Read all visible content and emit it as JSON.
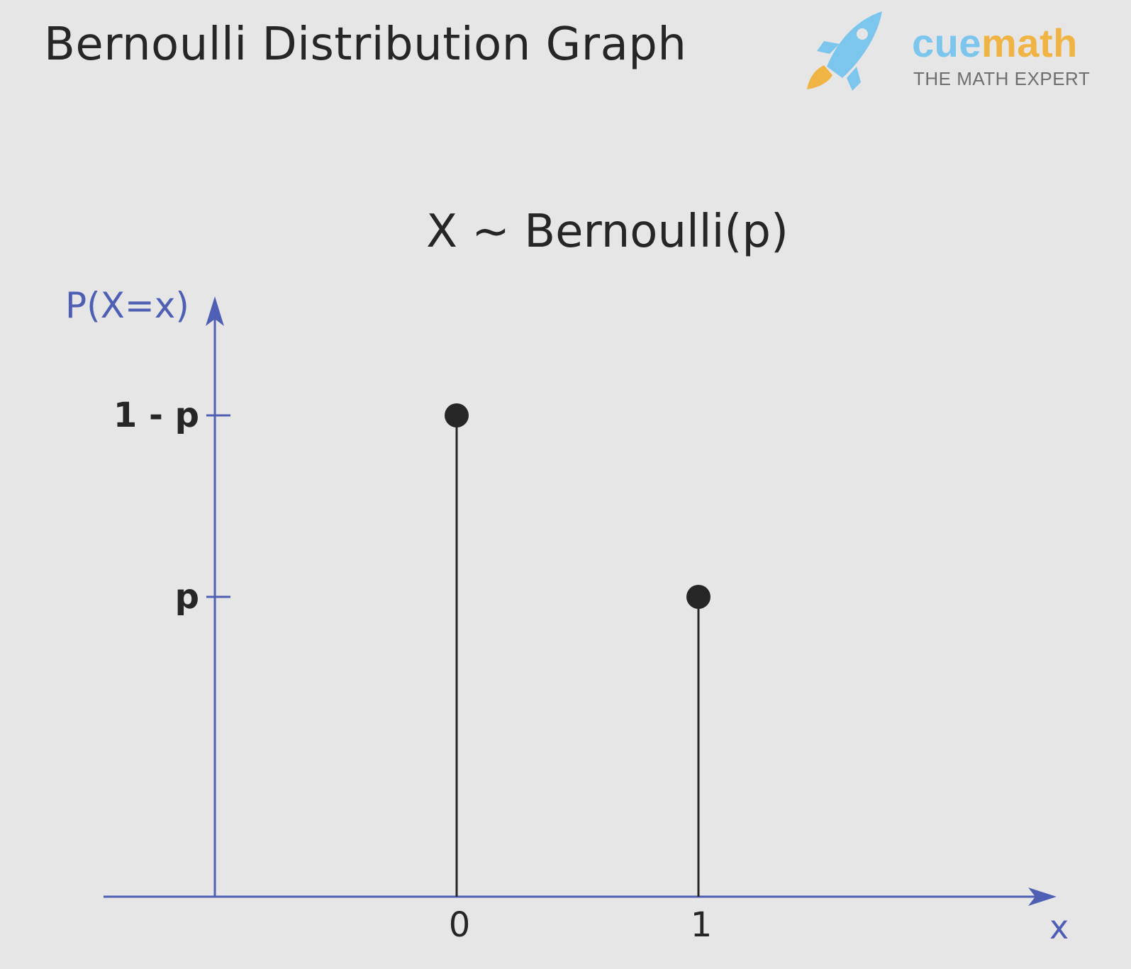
{
  "header": {
    "title": "Bernoulli Distribution Graph"
  },
  "logo": {
    "word_part1": "cue",
    "word_part2": "math",
    "tagline": "THE MATH EXPERT",
    "colors": {
      "cue": "#7cc6ee",
      "math": "#f0b444",
      "rocket_body": "#7cc6ee",
      "rocket_flame": "#f0b444"
    },
    "icon": "rocket-icon"
  },
  "chart_data": {
    "type": "stem",
    "title": "X ~ Bernoulli(p)",
    "xlabel": "x",
    "ylabel": "P(X=x)",
    "x_ticks": [
      "0",
      "1"
    ],
    "y_ticks": [
      "1 - p",
      "p"
    ],
    "points": [
      {
        "x": "0",
        "y": "1 - p"
      },
      {
        "x": "1",
        "y": "p"
      }
    ],
    "grid": false,
    "colors": {
      "axis": "#4f5fb3",
      "stem": "#262626",
      "background": "#e6e6e6"
    }
  }
}
